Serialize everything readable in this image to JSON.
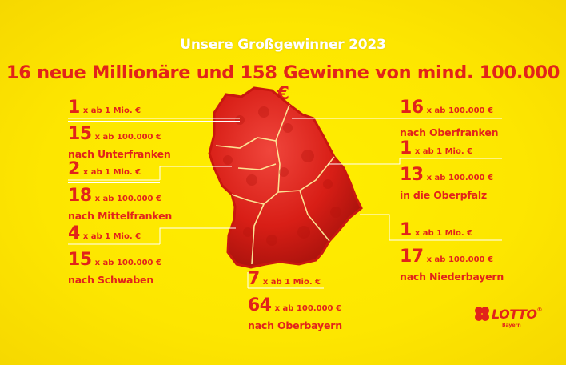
{
  "header": {
    "subtitle": "Unsere Großgewinner 2023",
    "headline": "16 neue Millionäre und 158 Gewinne von mind. 100.000 €"
  },
  "regions": [
    {
      "id": "unterfranken",
      "mio_count": "1",
      "mio_label": "x ab 1 Mio. €",
      "k_count": "15",
      "k_label": "x ab 100.000 €",
      "dest": "nach Unterfranken"
    },
    {
      "id": "mittelfranken",
      "mio_count": "2",
      "mio_label": "x ab 1 Mio. €",
      "k_count": "18",
      "k_label": "x ab 100.000 €",
      "dest": "nach Mittelfranken"
    },
    {
      "id": "schwaben",
      "mio_count": "4",
      "mio_label": "x  ab 1 Mio. €",
      "k_count": "15",
      "k_label": "x ab 100.000 €",
      "dest": "nach Schwaben"
    },
    {
      "id": "oberbayern",
      "mio_count": "7",
      "mio_label": "x  ab 1 Mio. €",
      "k_count": "64",
      "k_label": "x ab 100.000 €",
      "dest": "nach Oberbayern"
    },
    {
      "id": "oberfranken",
      "k_count": "16",
      "k_label": "x ab 100.000 €",
      "dest": "nach Oberfranken"
    },
    {
      "id": "oberpfalz",
      "mio_count": "1",
      "mio_label": "x ab 1 Mio. €",
      "k_count": "13",
      "k_label": "x ab 100.000 €",
      "dest": "in die Oberpfalz"
    },
    {
      "id": "niederbayern",
      "mio_count": "1",
      "mio_label": "x ab 1 Mio. €",
      "k_count": "17",
      "k_label": "x ab 100.000 €",
      "dest": "nach Niederbayern"
    }
  ],
  "logo": {
    "name": "LOTTO",
    "sub": "Bayern",
    "mark": "®"
  },
  "colors": {
    "background": "#fde600",
    "accent": "#e2231a",
    "text_light": "#ffffff"
  }
}
